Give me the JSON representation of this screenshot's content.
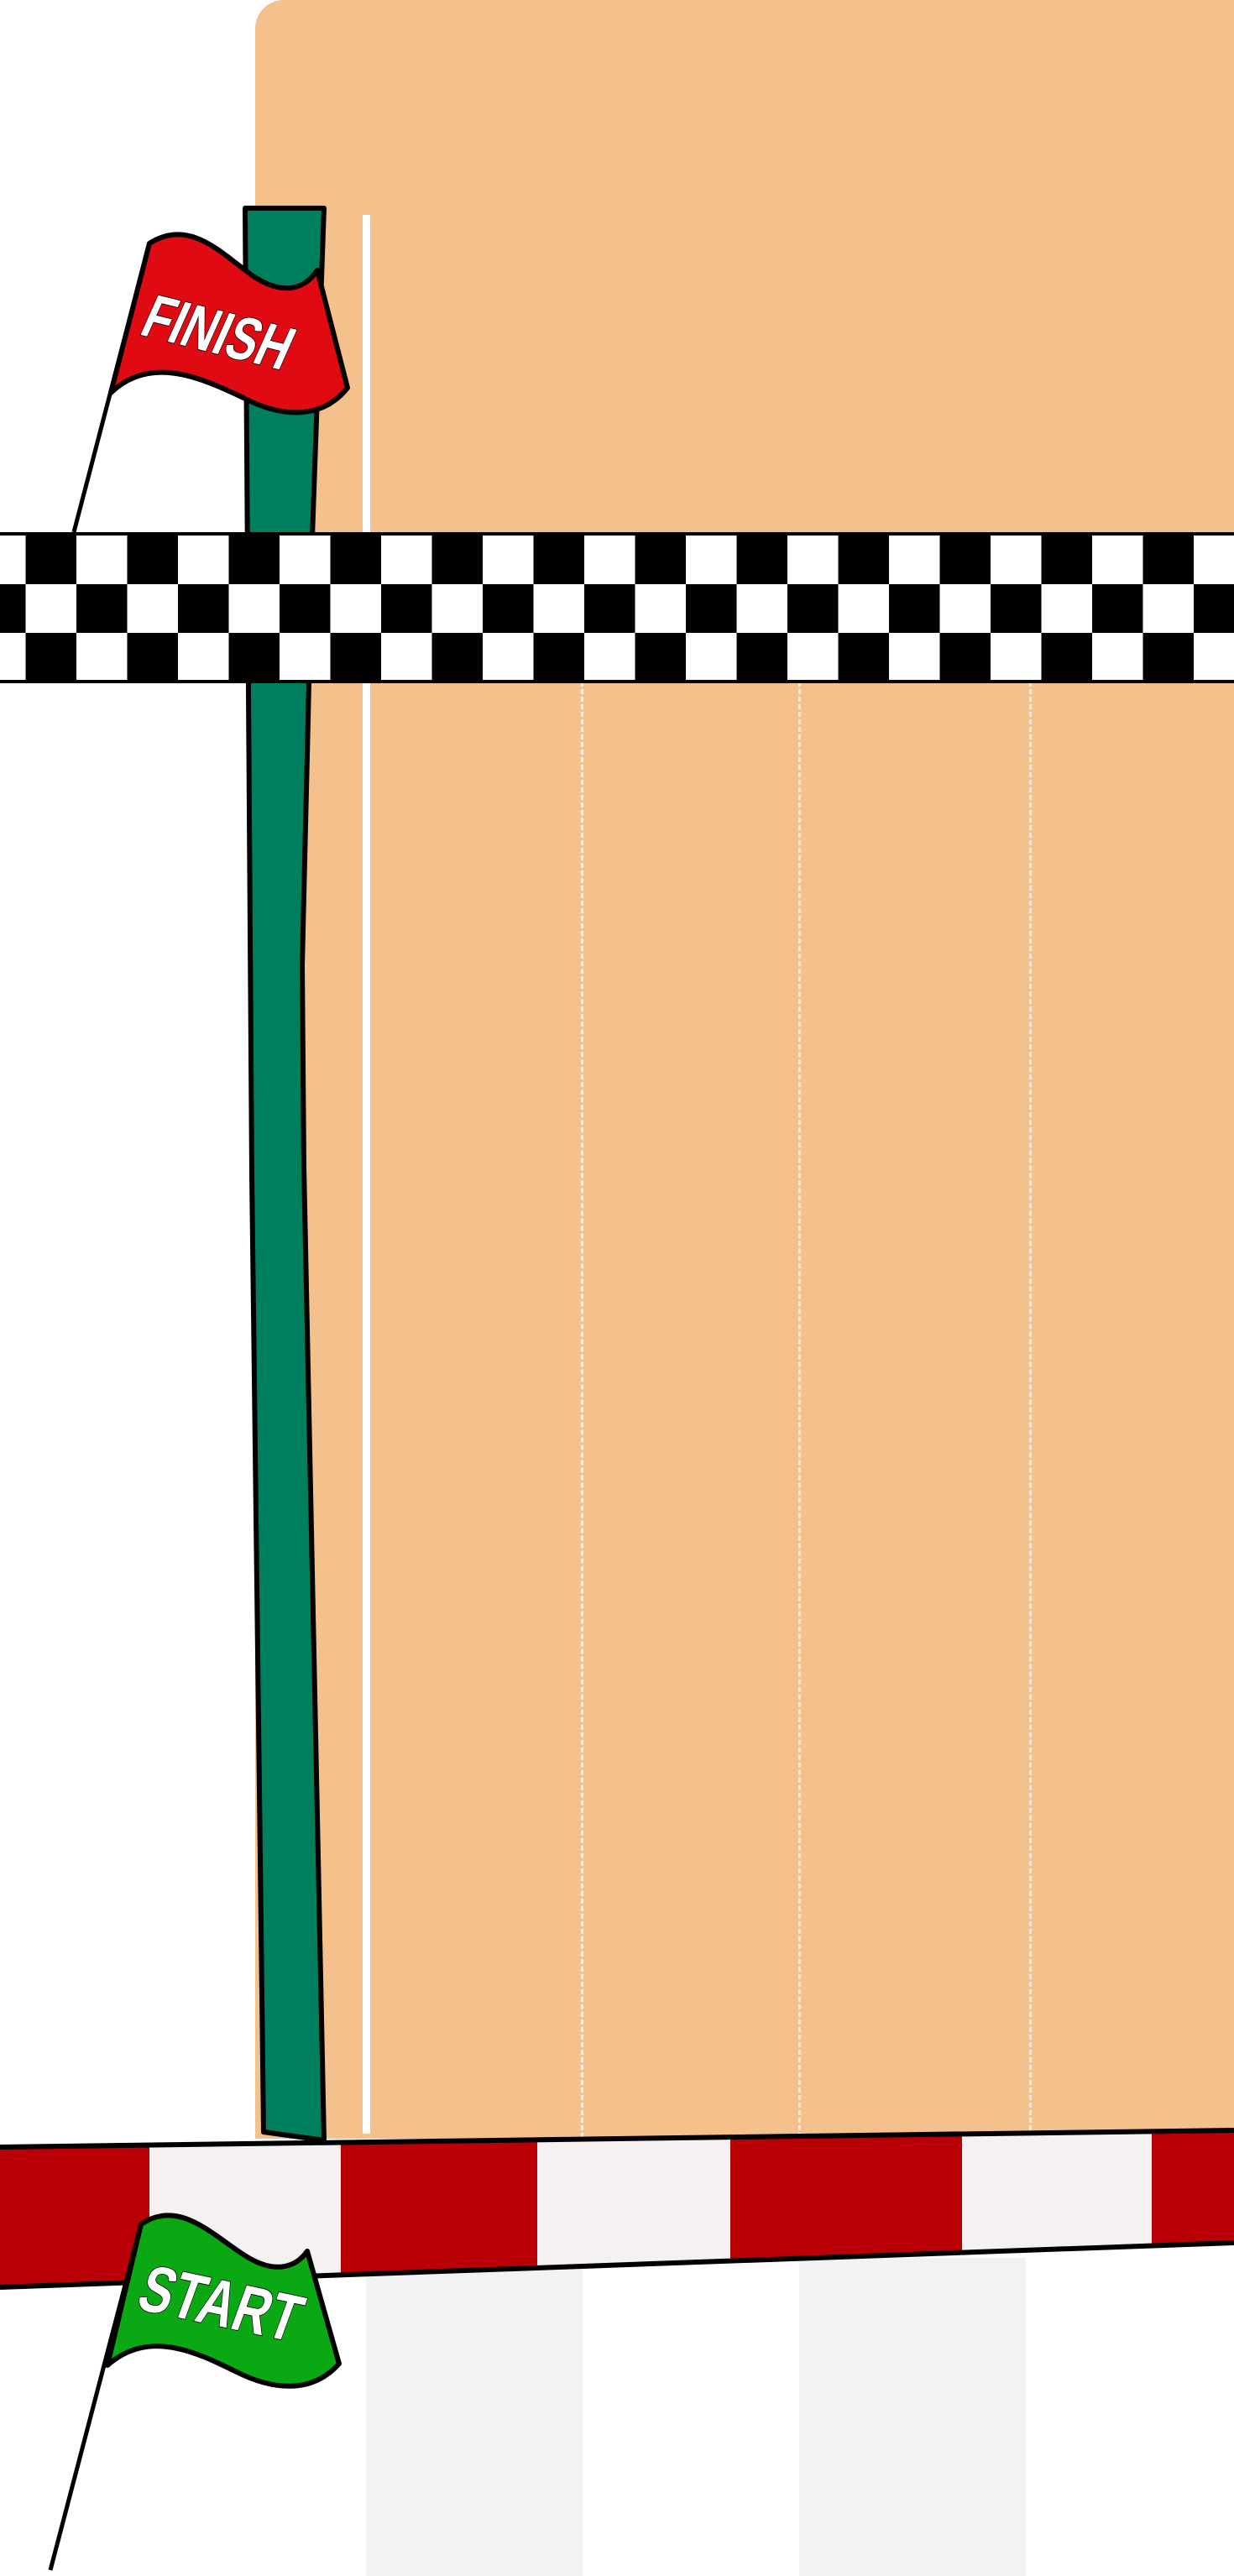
{
  "flags": {
    "finish": {
      "label": "FINISH",
      "color": "#e00a12"
    },
    "start": {
      "label": "START",
      "color": "#0aa813"
    }
  },
  "colors": {
    "track": "#f4c08c",
    "pole": "#007f5f",
    "start_stripe_red": "#b80006",
    "start_stripe_white": "#f5f1f0",
    "checker_dark": "#000000",
    "checker_light": "#ffffff"
  },
  "lanes": {
    "count": 4
  }
}
